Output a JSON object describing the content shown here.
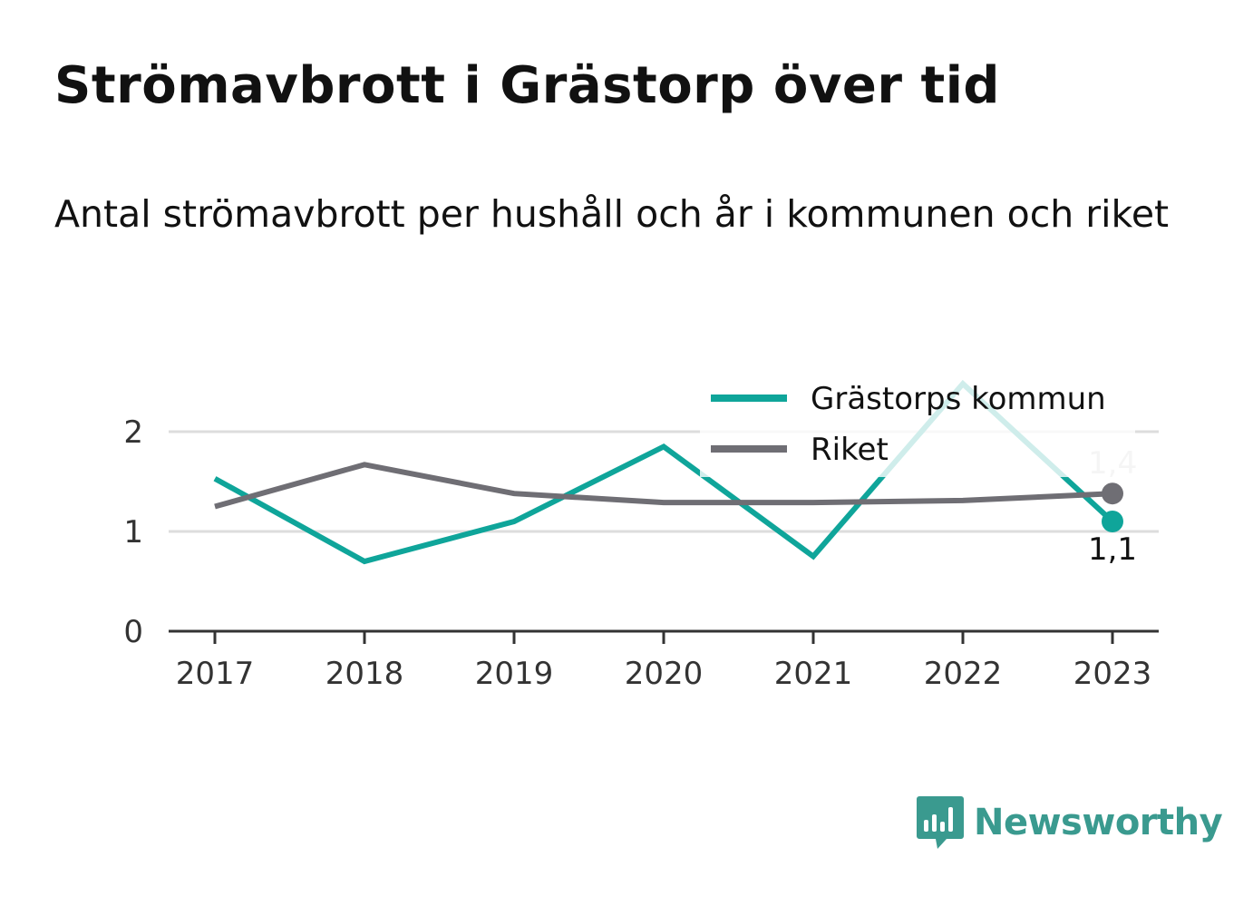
{
  "header": {
    "title": "Strömavbrott i Grästorp över tid",
    "subtitle": "Antal strömavbrott per hushåll och år i kommunen och riket"
  },
  "brand": {
    "name": "Newsworthy",
    "icon": "newsworthy-logo-icon",
    "color": "#3a9a8f"
  },
  "chart_data": {
    "type": "line",
    "x": [
      "2017",
      "2018",
      "2019",
      "2020",
      "2021",
      "2022",
      "2023"
    ],
    "ylim": [
      0,
      2.5
    ],
    "yticks": [
      0,
      1,
      2
    ],
    "grid": true,
    "legend_position": "top-right",
    "series": [
      {
        "name": "Grästorps kommun",
        "color": "#0fa59a",
        "values": [
          1.53,
          0.7,
          1.1,
          1.85,
          0.75,
          2.48,
          1.1
        ],
        "end_label": "1,1"
      },
      {
        "name": "Riket",
        "color": "#6f6e74",
        "values": [
          1.25,
          1.67,
          1.38,
          1.29,
          1.29,
          1.31,
          1.38
        ],
        "end_label": "1,4"
      }
    ]
  }
}
